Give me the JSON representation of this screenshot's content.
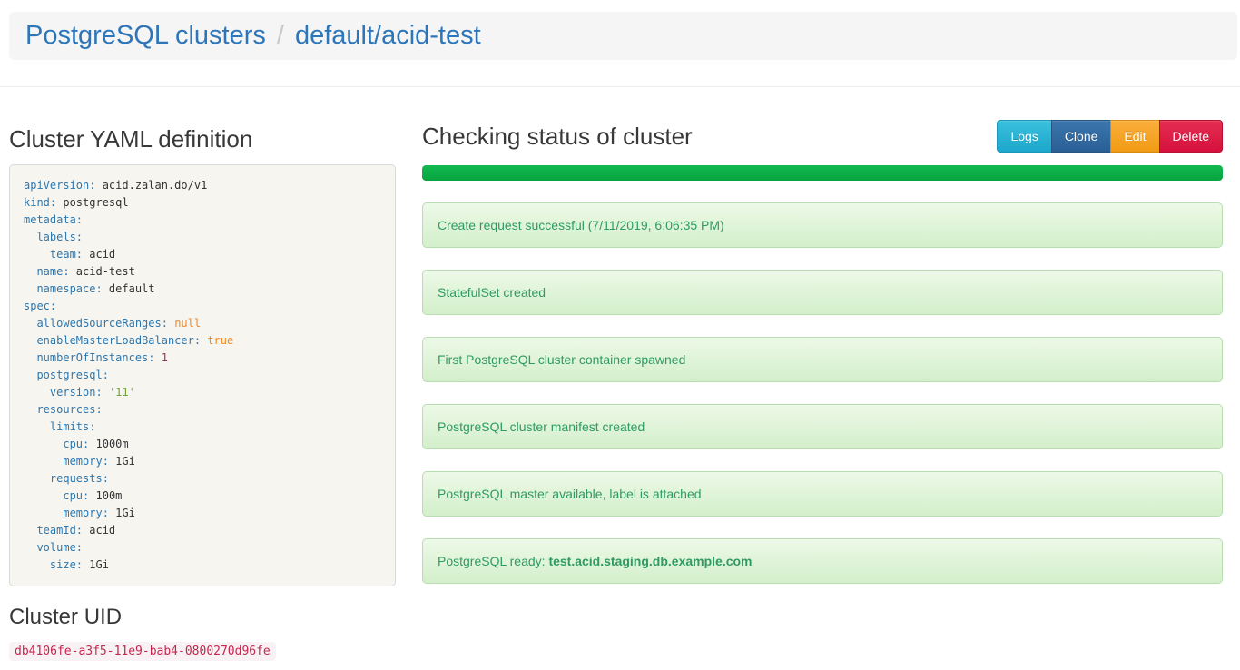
{
  "header": {
    "breadcrumb_root": "PostgreSQL clusters",
    "breadcrumb_separator": "/",
    "breadcrumb_current": "default/acid-test"
  },
  "left": {
    "yaml_title": "Cluster YAML definition",
    "uid_title": "Cluster UID",
    "uid_value": "db4106fe-a3f5-11e9-bab4-0800270d96fe",
    "yaml_lines": [
      [
        [
          "k",
          "apiVersion:"
        ],
        [
          "p",
          " acid.zalan.do/v1"
        ]
      ],
      [
        [
          "k",
          "kind:"
        ],
        [
          "p",
          " postgresql"
        ]
      ],
      [
        [
          "k",
          "metadata:"
        ]
      ],
      [
        [
          "p",
          "  "
        ],
        [
          "k",
          "labels:"
        ]
      ],
      [
        [
          "p",
          "    "
        ],
        [
          "k",
          "team:"
        ],
        [
          "p",
          " acid"
        ]
      ],
      [
        [
          "p",
          "  "
        ],
        [
          "k",
          "name:"
        ],
        [
          "p",
          " acid-test"
        ]
      ],
      [
        [
          "p",
          "  "
        ],
        [
          "k",
          "namespace:"
        ],
        [
          "p",
          " default"
        ]
      ],
      [
        [
          "k",
          "spec:"
        ]
      ],
      [
        [
          "p",
          "  "
        ],
        [
          "k",
          "allowedSourceRanges:"
        ],
        [
          "p",
          " "
        ],
        [
          "l",
          "null"
        ]
      ],
      [
        [
          "p",
          "  "
        ],
        [
          "k",
          "enableMasterLoadBalancer:"
        ],
        [
          "p",
          " "
        ],
        [
          "l",
          "true"
        ]
      ],
      [
        [
          "p",
          "  "
        ],
        [
          "k",
          "numberOfInstances:"
        ],
        [
          "p",
          " "
        ],
        [
          "n",
          "1"
        ]
      ],
      [
        [
          "p",
          "  "
        ],
        [
          "k",
          "postgresql:"
        ]
      ],
      [
        [
          "p",
          "    "
        ],
        [
          "k",
          "version:"
        ],
        [
          "p",
          " "
        ],
        [
          "s",
          "'11'"
        ]
      ],
      [
        [
          "p",
          "  "
        ],
        [
          "k",
          "resources:"
        ]
      ],
      [
        [
          "p",
          "    "
        ],
        [
          "k",
          "limits:"
        ]
      ],
      [
        [
          "p",
          "      "
        ],
        [
          "k",
          "cpu:"
        ],
        [
          "p",
          " 1000m"
        ]
      ],
      [
        [
          "p",
          "      "
        ],
        [
          "k",
          "memory:"
        ],
        [
          "p",
          " 1Gi"
        ]
      ],
      [
        [
          "p",
          "    "
        ],
        [
          "k",
          "requests:"
        ]
      ],
      [
        [
          "p",
          "      "
        ],
        [
          "k",
          "cpu:"
        ],
        [
          "p",
          " 100m"
        ]
      ],
      [
        [
          "p",
          "      "
        ],
        [
          "k",
          "memory:"
        ],
        [
          "p",
          " 1Gi"
        ]
      ],
      [
        [
          "p",
          "  "
        ],
        [
          "k",
          "teamId:"
        ],
        [
          "p",
          " acid"
        ]
      ],
      [
        [
          "p",
          "  "
        ],
        [
          "k",
          "volume:"
        ]
      ],
      [
        [
          "p",
          "    "
        ],
        [
          "k",
          "size:"
        ],
        [
          "p",
          " 1Gi"
        ]
      ]
    ]
  },
  "status": {
    "title": "Checking status of cluster",
    "buttons": [
      {
        "label": "Logs",
        "style": "info",
        "name": "logs-button"
      },
      {
        "label": "Clone",
        "style": "primary",
        "name": "clone-button"
      },
      {
        "label": "Edit",
        "style": "warning",
        "name": "edit-button"
      },
      {
        "label": "Delete",
        "style": "danger",
        "name": "delete-button"
      }
    ],
    "progress_percent": 100,
    "messages": [
      {
        "text": "Create request successful (7/11/2019, 6:06:35 PM)"
      },
      {
        "text": "StatefulSet created"
      },
      {
        "text": "First PostgreSQL cluster container spawned"
      },
      {
        "text": "PostgreSQL cluster manifest created"
      },
      {
        "text": "PostgreSQL master available, label is attached"
      },
      {
        "text": "PostgreSQL ready: ",
        "bold": "test.acid.staging.db.example.com"
      }
    ]
  },
  "colors": {
    "breadcrumb_link": "#2d76ba",
    "header_bar_bg": "#f5f5f5",
    "yaml_key": "#2c77ae",
    "yaml_literal": "#f5871f",
    "yaml_number": "#a02e66",
    "yaml_string": "#70a33c",
    "yaml_box_bg": "#f7f5f0",
    "progress_green": "#0cb04a",
    "alert_text": "#2f9b63",
    "alert_bg_top": "#edf9e8",
    "alert_bg_bottom": "#d3efca",
    "alert_border": "#b8ddae",
    "uid_text": "#c7254e",
    "uid_bg": "#f9f2f4",
    "btn_logs": "#23b2d7",
    "btn_clone": "#2d649c",
    "btn_edit": "#f9a62a",
    "btn_delete": "#e01747"
  }
}
